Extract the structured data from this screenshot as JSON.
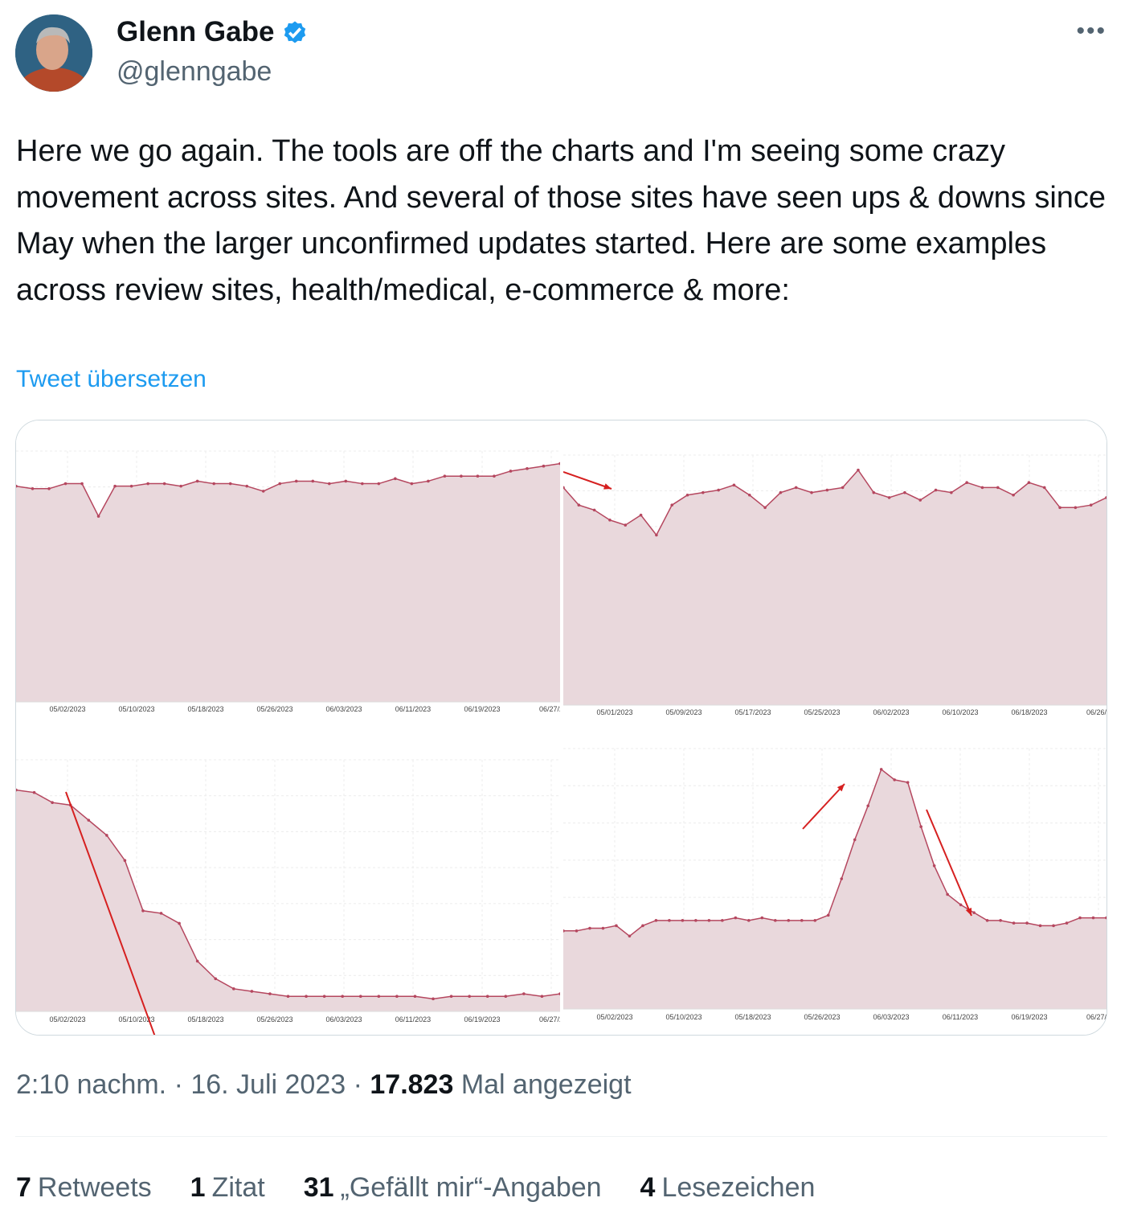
{
  "author": {
    "name": "Glenn Gabe",
    "handle": "@glenngabe",
    "verified": true,
    "verified_color": "#1d9bf0"
  },
  "more_icon": "more-horizontal-icon",
  "tweet_text": "Here we go again. The tools are off the charts and I'm seeing some crazy movement across sites. And several of those sites have seen ups & downs since May when the larger unconfirmed updates started. Here are some examples across review sites, health/medical, e-commerce & more:",
  "translate_label": "Tweet übersetzen",
  "meta": {
    "time": "2:10 nachm.",
    "date": "16. Juli 2023",
    "views": "17.823",
    "views_label": "Mal angezeigt"
  },
  "stats": [
    {
      "count": "7",
      "label": "Retweets"
    },
    {
      "count": "1",
      "label": "Zitat"
    },
    {
      "count": "31",
      "label": "„Gefällt mir“-Angaben"
    },
    {
      "count": "4",
      "label": "Lesezeichen"
    }
  ],
  "chart_data": [
    {
      "type": "area",
      "x_ticks": [
        "05/02/2023",
        "05/10/2023",
        "05/18/2023",
        "05/26/2023",
        "06/03/2023",
        "06/11/2023",
        "06/19/2023",
        "06/27/2"
      ],
      "color": "#b5475f",
      "fill": "#e9d8dc",
      "values": [
        86,
        85,
        85,
        87,
        87,
        74,
        86,
        86,
        87,
        87,
        86,
        88,
        87,
        87,
        86,
        84,
        87,
        88,
        88,
        87,
        88,
        87,
        87,
        89,
        87,
        88,
        90,
        90,
        90,
        90,
        92,
        93,
        94,
        95
      ],
      "annotations": []
    },
    {
      "type": "area",
      "x_ticks": [
        "05/01/2023",
        "05/09/2023",
        "05/17/2023",
        "05/25/2023",
        "06/02/2023",
        "06/10/2023",
        "06/18/2023",
        "06/26/2"
      ],
      "color": "#b5475f",
      "fill": "#e9d8dc",
      "values": [
        87,
        80,
        78,
        74,
        72,
        76,
        68,
        80,
        84,
        85,
        86,
        88,
        84,
        79,
        85,
        87,
        85,
        86,
        87,
        94,
        85,
        83,
        85,
        82,
        86,
        85,
        89,
        87,
        87,
        84,
        89,
        87,
        79,
        79,
        80,
        83
      ],
      "annotations": [
        "down-arrow"
      ]
    },
    {
      "type": "area",
      "x_ticks": [
        "05/02/2023",
        "05/10/2023",
        "05/18/2023",
        "05/26/2023",
        "06/03/2023",
        "06/11/2023",
        "06/19/2023",
        "06/27/2"
      ],
      "color": "#b5475f",
      "fill": "#e9d8dc",
      "values": [
        88,
        87,
        83,
        82,
        76,
        70,
        60,
        40,
        39,
        35,
        20,
        13,
        9,
        8,
        7,
        6,
        6,
        6,
        6,
        6,
        6,
        6,
        6,
        5,
        6,
        6,
        6,
        6,
        7,
        6,
        7
      ],
      "annotations": [
        "down-arrow"
      ]
    },
    {
      "type": "area",
      "x_ticks": [
        "05/02/2023",
        "05/10/2023",
        "05/18/2023",
        "05/26/2023",
        "06/03/2023",
        "06/11/2023",
        "06/19/2023",
        "06/27/2"
      ],
      "color": "#b5475f",
      "fill": "#e9d8dc",
      "values": [
        30,
        30,
        31,
        31,
        32,
        28,
        32,
        34,
        34,
        34,
        34,
        34,
        34,
        35,
        34,
        35,
        34,
        34,
        34,
        34,
        36,
        50,
        65,
        78,
        92,
        88,
        87,
        70,
        55,
        44,
        40,
        37,
        34,
        34,
        33,
        33,
        32,
        32,
        33,
        35,
        35,
        35
      ],
      "annotations": [
        "up-arrow",
        "down-arrow"
      ]
    }
  ]
}
